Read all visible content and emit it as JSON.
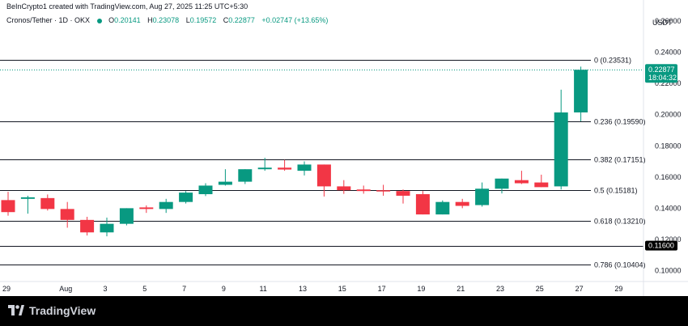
{
  "header": {
    "credit": "BeInCrypto1 created with TradingView.com, Aug 27, 2025 11:25 UTC+5:30"
  },
  "symbol": {
    "name": "Cronos/Tether · 1D · OKX",
    "o_label": "O",
    "o": "0.20141",
    "h_label": "H",
    "h": "0.23078",
    "l_label": "L",
    "l": "0.19572",
    "c_label": "C",
    "c": "0.22877",
    "change": "+0.02747 (+13.65%)"
  },
  "price_axis": {
    "currency": "USDT",
    "ticks": [
      "0.26000",
      "0.24000",
      "0.22000",
      "0.20000",
      "0.18000",
      "0.16000",
      "0.14000",
      "0.12000",
      "0.10000"
    ]
  },
  "price_label": {
    "value": "0.22877",
    "countdown": "18:04:32"
  },
  "support_label": {
    "value": "0.11600"
  },
  "footer": {
    "brand": "TradingView"
  },
  "colors": {
    "up": "#089981",
    "down": "#f23645",
    "line": "#131722",
    "dotted": "#089981"
  },
  "chart_data": {
    "type": "candlestick",
    "title": "Cronos/Tether · 1D · OKX",
    "ylabel": "USDT",
    "ylim": [
      0.093,
      0.2735
    ],
    "x_ticks": [
      {
        "label": "29",
        "i": 0
      },
      {
        "label": "Aug",
        "i": 3
      },
      {
        "label": "3",
        "i": 5
      },
      {
        "label": "5",
        "i": 7
      },
      {
        "label": "7",
        "i": 9
      },
      {
        "label": "9",
        "i": 11
      },
      {
        "label": "11",
        "i": 13
      },
      {
        "label": "13",
        "i": 15
      },
      {
        "label": "15",
        "i": 17
      },
      {
        "label": "17",
        "i": 19
      },
      {
        "label": "19",
        "i": 21
      },
      {
        "label": "21",
        "i": 23
      },
      {
        "label": "23",
        "i": 25
      },
      {
        "label": "25",
        "i": 27
      },
      {
        "label": "27",
        "i": 29
      },
      {
        "label": "29",
        "i": 31
      }
    ],
    "candles": [
      {
        "date": "Jul 29",
        "o": 0.1452,
        "h": 0.1505,
        "l": 0.1352,
        "c": 0.1375
      },
      {
        "date": "Jul 30",
        "o": 0.146,
        "h": 0.148,
        "l": 0.1365,
        "c": 0.147
      },
      {
        "date": "Jul 31",
        "o": 0.1465,
        "h": 0.1488,
        "l": 0.1385,
        "c": 0.1395
      },
      {
        "date": "Aug 1",
        "o": 0.1395,
        "h": 0.144,
        "l": 0.1275,
        "c": 0.1325
      },
      {
        "date": "Aug 2",
        "o": 0.1325,
        "h": 0.1345,
        "l": 0.1225,
        "c": 0.1245
      },
      {
        "date": "Aug 3",
        "o": 0.1245,
        "h": 0.134,
        "l": 0.122,
        "c": 0.13
      },
      {
        "date": "Aug 4",
        "o": 0.13,
        "h": 0.14,
        "l": 0.129,
        "c": 0.14
      },
      {
        "date": "Aug 5",
        "o": 0.1405,
        "h": 0.1418,
        "l": 0.137,
        "c": 0.1395
      },
      {
        "date": "Aug 6",
        "o": 0.1395,
        "h": 0.146,
        "l": 0.137,
        "c": 0.144
      },
      {
        "date": "Aug 7",
        "o": 0.144,
        "h": 0.151,
        "l": 0.143,
        "c": 0.15
      },
      {
        "date": "Aug 8",
        "o": 0.149,
        "h": 0.156,
        "l": 0.1478,
        "c": 0.1545
      },
      {
        "date": "Aug 9",
        "o": 0.155,
        "h": 0.165,
        "l": 0.1545,
        "c": 0.157
      },
      {
        "date": "Aug 10",
        "o": 0.157,
        "h": 0.165,
        "l": 0.1555,
        "c": 0.165
      },
      {
        "date": "Aug 11",
        "o": 0.165,
        "h": 0.1723,
        "l": 0.164,
        "c": 0.166
      },
      {
        "date": "Aug 12",
        "o": 0.166,
        "h": 0.171,
        "l": 0.164,
        "c": 0.1648
      },
      {
        "date": "Aug 13",
        "o": 0.164,
        "h": 0.17,
        "l": 0.161,
        "c": 0.168
      },
      {
        "date": "Aug 14",
        "o": 0.168,
        "h": 0.168,
        "l": 0.1475,
        "c": 0.154
      },
      {
        "date": "Aug 15",
        "o": 0.154,
        "h": 0.158,
        "l": 0.1492,
        "c": 0.1515
      },
      {
        "date": "Aug 16",
        "o": 0.152,
        "h": 0.1545,
        "l": 0.1493,
        "c": 0.151
      },
      {
        "date": "Aug 17",
        "o": 0.1515,
        "h": 0.155,
        "l": 0.148,
        "c": 0.151
      },
      {
        "date": "Aug 18",
        "o": 0.151,
        "h": 0.152,
        "l": 0.143,
        "c": 0.148
      },
      {
        "date": "Aug 19",
        "o": 0.149,
        "h": 0.151,
        "l": 0.136,
        "c": 0.136
      },
      {
        "date": "Aug 20",
        "o": 0.136,
        "h": 0.145,
        "l": 0.136,
        "c": 0.144
      },
      {
        "date": "Aug 21",
        "o": 0.144,
        "h": 0.146,
        "l": 0.14,
        "c": 0.1415
      },
      {
        "date": "Aug 22",
        "o": 0.142,
        "h": 0.1565,
        "l": 0.141,
        "c": 0.1525
      },
      {
        "date": "Aug 23",
        "o": 0.1525,
        "h": 0.159,
        "l": 0.1495,
        "c": 0.159
      },
      {
        "date": "Aug 24",
        "o": 0.158,
        "h": 0.164,
        "l": 0.1555,
        "c": 0.156
      },
      {
        "date": "Aug 25",
        "o": 0.1565,
        "h": 0.1615,
        "l": 0.1535,
        "c": 0.1535
      },
      {
        "date": "Aug 26",
        "o": 0.154,
        "h": 0.216,
        "l": 0.152,
        "c": 0.2014
      },
      {
        "date": "Aug 27",
        "o": 0.20141,
        "h": 0.23078,
        "l": 0.19572,
        "c": 0.22877
      }
    ],
    "fib_levels": [
      {
        "label": "0 (0.23531)",
        "value": 0.23531
      },
      {
        "label": "0.236 (0.19590)",
        "value": 0.1959
      },
      {
        "label": "0.382 (0.17151)",
        "value": 0.17151
      },
      {
        "label": "0.5 (0.15181)",
        "value": 0.15181
      },
      {
        "label": "0.618 (0.13210)",
        "value": 0.1321
      },
      {
        "label": "0.786 (0.10404)",
        "value": 0.10404
      }
    ],
    "support_level": 0.116,
    "last_price": 0.22877
  }
}
